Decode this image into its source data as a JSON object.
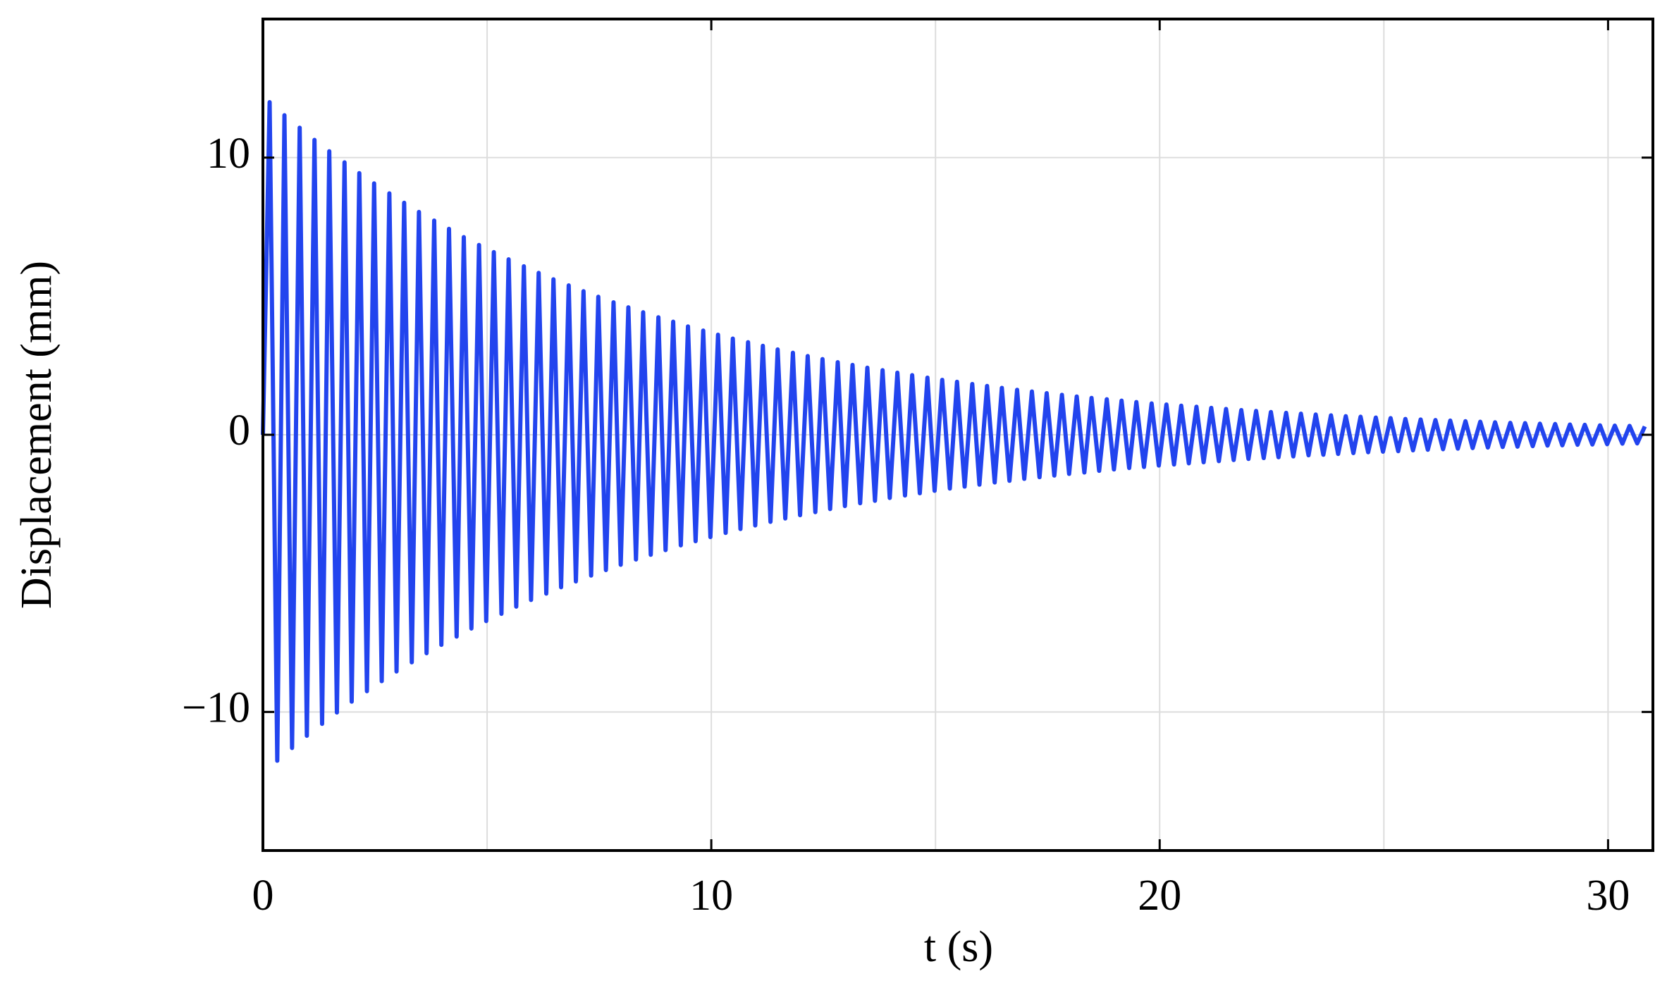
{
  "chart_data": {
    "type": "line",
    "x_label": "t (s)",
    "y_label": "Displacement (mm)",
    "color": "#2244ee",
    "grid": true,
    "xlim": [
      0,
      31
    ],
    "xticks": [
      0,
      10,
      20,
      30
    ],
    "xminorticks": [
      5,
      15,
      25
    ],
    "ylim": [
      -15,
      15
    ],
    "yticks": [
      {
        "value": -10,
        "label": "−10"
      },
      0,
      10
    ],
    "x": [
      0,
      0.15,
      0.32,
      0.48,
      0.65,
      0.82,
      0.98,
      1.15,
      1.32,
      1.48,
      1.65,
      1.82,
      1.98,
      2.15,
      2.32,
      2.48,
      2.65,
      2.82,
      2.98,
      3.15,
      3.32,
      3.48,
      3.65,
      3.82,
      3.98,
      4.15,
      4.32,
      4.48,
      4.65,
      4.82,
      4.98,
      5.15,
      5.32,
      5.48,
      5.65,
      5.82,
      5.98,
      6.15,
      6.32,
      6.48,
      6.65,
      6.82,
      6.98,
      7.15,
      7.32,
      7.48,
      7.65,
      7.82,
      7.98,
      8.15,
      8.32,
      8.48,
      8.65,
      8.82,
      8.98,
      9.15,
      9.32,
      9.48,
      9.65,
      9.82,
      9.98,
      10.15,
      10.32,
      10.48,
      10.65,
      10.82,
      10.98,
      11.15,
      11.32,
      11.48,
      11.65,
      11.82,
      11.98,
      12.15,
      12.32,
      12.48,
      12.65,
      12.82,
      12.98,
      13.15,
      13.32,
      13.48,
      13.65,
      13.82,
      13.98,
      14.15,
      14.32,
      14.48,
      14.65,
      14.82,
      14.98,
      15.15,
      15.32,
      15.48,
      15.65,
      15.82,
      15.98,
      16.15,
      16.32,
      16.48,
      16.65,
      16.82,
      16.98,
      17.15,
      17.32,
      17.48,
      17.65,
      17.82,
      17.98,
      18.15,
      18.32,
      18.48,
      18.65,
      18.82,
      18.98,
      19.15,
      19.32,
      19.48,
      19.65,
      19.82,
      19.98,
      20.15,
      20.32,
      20.48,
      20.65,
      20.82,
      20.98,
      21.15,
      21.32,
      21.48,
      21.65,
      21.82,
      21.98,
      22.15,
      22.32,
      22.48,
      22.65,
      22.82,
      22.98,
      23.15,
      23.32,
      23.48,
      23.65,
      23.82,
      23.98,
      24.15,
      24.32,
      24.48,
      24.65,
      24.82,
      24.98,
      25.15,
      25.32,
      25.48,
      25.65,
      25.82,
      25.98,
      26.15,
      26.32,
      26.48,
      26.65,
      26.82,
      26.98,
      27.15,
      27.32,
      27.48,
      27.65,
      27.82,
      27.98,
      28.15,
      28.32,
      28.48,
      28.65,
      28.82,
      28.98,
      29.15,
      29.32,
      29.48,
      29.65,
      29.82,
      29.98,
      30.15,
      30.32,
      30.48,
      30.65,
      30.82
    ],
    "values": [
      0,
      12,
      -11.76,
      11.53,
      -11.3,
      11.08,
      -10.86,
      10.64,
      -10.43,
      10.23,
      -10.02,
      9.83,
      -9.63,
      9.44,
      -9.25,
      9.07,
      -8.89,
      8.71,
      -8.54,
      8.37,
      -8.21,
      8.04,
      -7.88,
      7.73,
      -7.58,
      7.43,
      -7.28,
      7.13,
      -6.99,
      6.85,
      -6.72,
      6.59,
      -6.46,
      6.33,
      -6.2,
      6.08,
      -5.96,
      5.84,
      -5.73,
      5.61,
      -5.5,
      5.39,
      -5.29,
      5.18,
      -5.08,
      4.98,
      -4.88,
      4.78,
      -4.69,
      4.6,
      -4.5,
      4.42,
      -4.33,
      4.24,
      -4.16,
      4.08,
      -3.99,
      3.91,
      -3.84,
      3.76,
      -3.69,
      3.61,
      -3.54,
      3.47,
      -3.4,
      3.34,
      -3.27,
      3.21,
      -3.14,
      3.08,
      -3.02,
      2.96,
      -2.9,
      2.84,
      -2.79,
      2.73,
      -2.68,
      2.62,
      -2.57,
      2.52,
      -2.47,
      2.42,
      -2.38,
      2.33,
      -2.28,
      2.24,
      -2.19,
      2.15,
      -2.11,
      2.06,
      -2.02,
      1.98,
      -1.94,
      1.91,
      -1.87,
      1.83,
      -1.8,
      1.76,
      -1.72,
      1.69,
      -1.66,
      1.62,
      -1.59,
      1.56,
      -1.53,
      1.5,
      -1.47,
      1.44,
      -1.41,
      1.38,
      -1.36,
      1.33,
      -1.3,
      1.28,
      -1.25,
      1.23,
      -1.2,
      1.18,
      -1.16,
      1.13,
      -1.11,
      1.09,
      -1.07,
      1.05,
      -1.03,
      1.01,
      -0.99,
      0.97,
      -0.95,
      0.93,
      -0.91,
      0.89,
      -0.87,
      0.86,
      -0.84,
      0.82,
      -0.81,
      0.79,
      -0.78,
      0.76,
      -0.74,
      0.73,
      -0.72,
      0.7,
      -0.69,
      0.67,
      -0.66,
      0.65,
      -0.63,
      0.62,
      -0.61,
      0.6,
      -0.59,
      0.57,
      -0.56,
      0.55,
      -0.54,
      0.53,
      -0.52,
      0.51,
      -0.5,
      0.49,
      -0.48,
      0.47,
      -0.46,
      0.45,
      -0.44,
      0.43,
      -0.43,
      0.42,
      -0.41,
      0.4,
      -0.39,
      0.39,
      -0.38,
      0.37,
      -0.36,
      0.36,
      -0.35,
      0.34,
      -0.34,
      0.33,
      -0.32,
      0.32,
      -0.31,
      0.3
    ]
  }
}
